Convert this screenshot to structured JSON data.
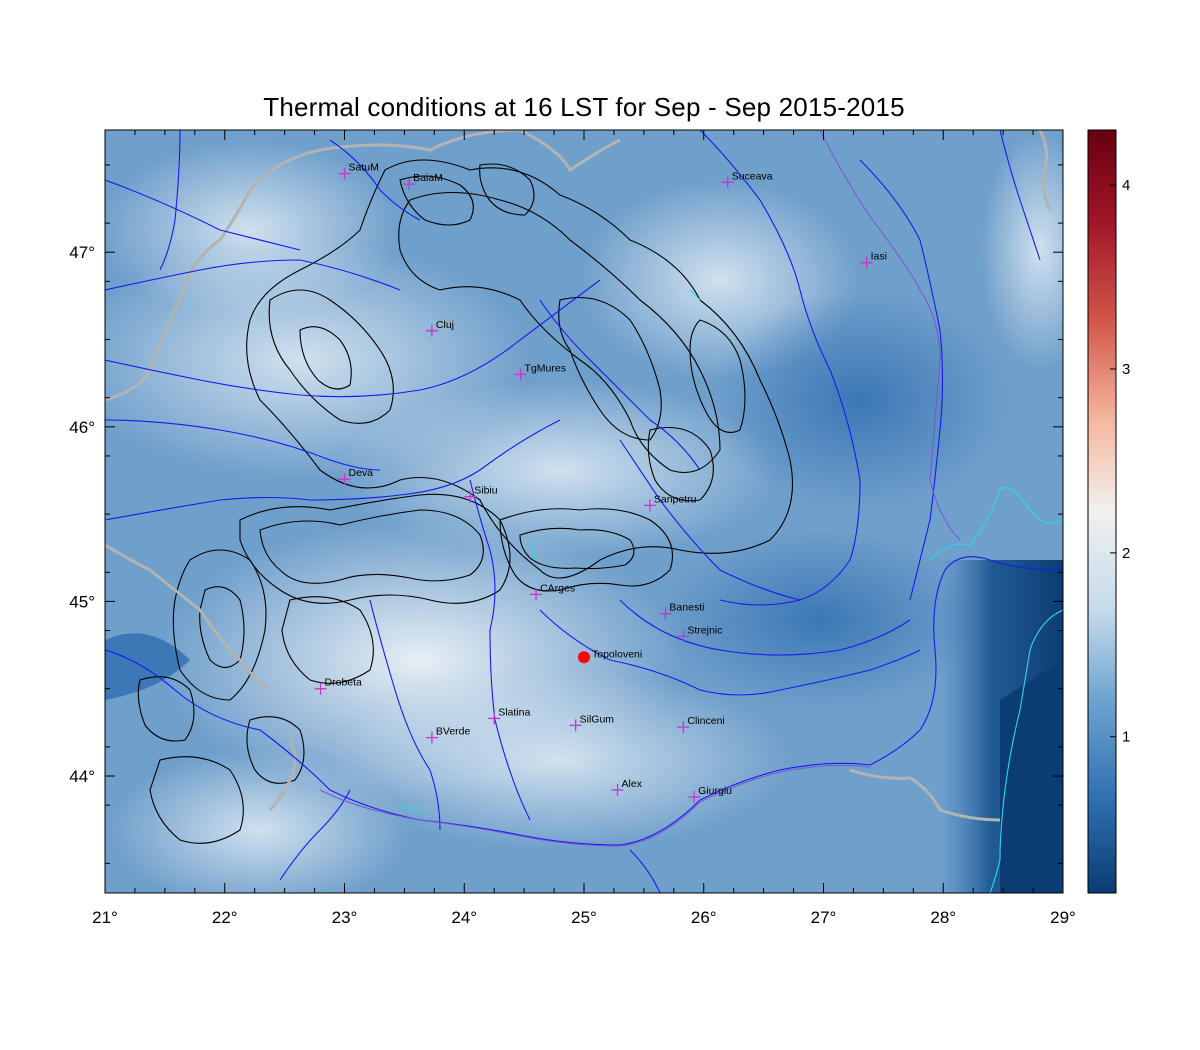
{
  "title": "Thermal conditions at 16 LST for Sep - Sep  2015-2015",
  "map": {
    "lon_range": [
      21,
      29
    ],
    "lat_range": [
      43.33,
      47.7
    ],
    "x_ticks": [
      {
        "value": 21,
        "label": "21°"
      },
      {
        "value": 22,
        "label": "22°"
      },
      {
        "value": 23,
        "label": "23°"
      },
      {
        "value": 24,
        "label": "24°"
      },
      {
        "value": 25,
        "label": "25°"
      },
      {
        "value": 26,
        "label": "26°"
      },
      {
        "value": 27,
        "label": "27°"
      },
      {
        "value": 28,
        "label": "28°"
      },
      {
        "value": 29,
        "label": "29°"
      }
    ],
    "y_ticks": [
      {
        "value": 44,
        "label": "44°"
      },
      {
        "value": 45,
        "label": "45°"
      },
      {
        "value": 46,
        "label": "46°"
      },
      {
        "value": 47,
        "label": "47°"
      }
    ],
    "marker_color": "#cc33cc",
    "highlight_color": "#ff0000",
    "cities": [
      {
        "name": "SatuM",
        "lon": 23.0,
        "lat": 47.45
      },
      {
        "name": "BaiaM",
        "lon": 23.54,
        "lat": 47.39
      },
      {
        "name": "Suceava",
        "lon": 26.2,
        "lat": 47.4
      },
      {
        "name": "Iasi",
        "lon": 27.36,
        "lat": 46.94
      },
      {
        "name": "Cluj",
        "lon": 23.73,
        "lat": 46.55
      },
      {
        "name": "TgMures",
        "lon": 24.47,
        "lat": 46.3
      },
      {
        "name": "Deva",
        "lon": 23.0,
        "lat": 45.7
      },
      {
        "name": "Sibiu",
        "lon": 24.05,
        "lat": 45.6
      },
      {
        "name": "Sanpetru",
        "lon": 25.55,
        "lat": 45.55
      },
      {
        "name": "CArges",
        "lon": 24.6,
        "lat": 45.04
      },
      {
        "name": "Banesti",
        "lon": 25.68,
        "lat": 44.93
      },
      {
        "name": "Strejnic",
        "lon": 25.83,
        "lat": 44.8
      },
      {
        "name": "Drobeta",
        "lon": 22.8,
        "lat": 44.5
      },
      {
        "name": "Slatina",
        "lon": 24.25,
        "lat": 44.33
      },
      {
        "name": "SilGum",
        "lon": 24.93,
        "lat": 44.29
      },
      {
        "name": "Clinceni",
        "lon": 25.83,
        "lat": 44.28
      },
      {
        "name": "BVerde",
        "lon": 23.73,
        "lat": 44.22
      },
      {
        "name": "Alex",
        "lon": 25.28,
        "lat": 43.92
      },
      {
        "name": "Giurgiu",
        "lon": 25.92,
        "lat": 43.88
      }
    ],
    "highlight_site": {
      "name": "Topoloveni",
      "lon": 25.0,
      "lat": 44.68
    }
  },
  "colorbar": {
    "range": [
      0.15,
      4.3
    ],
    "ticks": [
      {
        "value": 1,
        "label": "1"
      },
      {
        "value": 2,
        "label": "2"
      },
      {
        "value": 3,
        "label": "3"
      },
      {
        "value": 4,
        "label": "4"
      }
    ],
    "colors": [
      "#0b3c72",
      "#2f6eb0",
      "#6ca2cf",
      "#c4dbeb",
      "#f2f0ef",
      "#f5b79e",
      "#d2564a",
      "#a11529",
      "#670010"
    ]
  }
}
